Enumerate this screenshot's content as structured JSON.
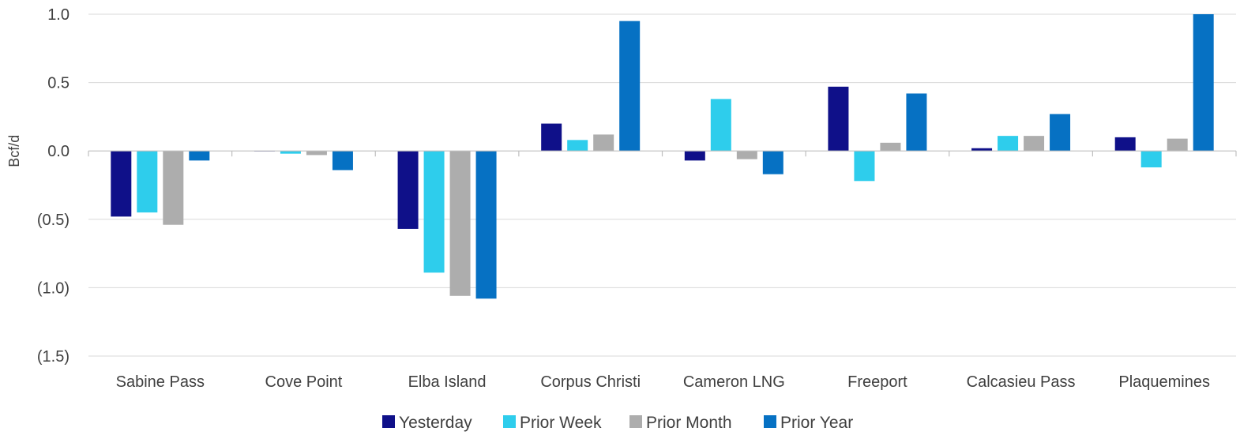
{
  "chart_data": {
    "type": "bar",
    "title": "",
    "xlabel": "",
    "ylabel": "Bcf/d",
    "ylim": [
      -1.5,
      1.0
    ],
    "yticks": [
      1.0,
      0.5,
      0.0,
      -0.5,
      -1.0,
      -1.5
    ],
    "ytick_labels": [
      "1.0",
      "0.5",
      "0.0",
      "(0.5)",
      "(1.0)",
      "(1.5)"
    ],
    "negative_tick_color": "#ff0000",
    "grid": true,
    "legend_position": "bottom",
    "categories": [
      "Sabine Pass",
      "Cove Point",
      "Elba Island",
      "Corpus Christi",
      "Cameron LNG",
      "Freeport",
      "Calcasieu Pass",
      "Plaquemines"
    ],
    "series": [
      {
        "name": "Yesterday",
        "color": "#0f1089",
        "values": [
          -0.48,
          0.0,
          -0.57,
          0.2,
          -0.07,
          0.47,
          0.02,
          0.1
        ]
      },
      {
        "name": "Prior Week",
        "color": "#2ecdec",
        "values": [
          -0.45,
          -0.02,
          -0.89,
          0.08,
          0.38,
          -0.22,
          0.11,
          -0.12
        ]
      },
      {
        "name": "Prior Month",
        "color": "#adadad",
        "values": [
          -0.54,
          -0.03,
          -1.06,
          0.12,
          -0.06,
          0.06,
          0.11,
          0.09
        ]
      },
      {
        "name": "Prior Year",
        "color": "#0671c3",
        "values": [
          -0.07,
          -0.14,
          -1.08,
          0.95,
          -0.17,
          0.42,
          0.27,
          1.0
        ]
      }
    ]
  }
}
